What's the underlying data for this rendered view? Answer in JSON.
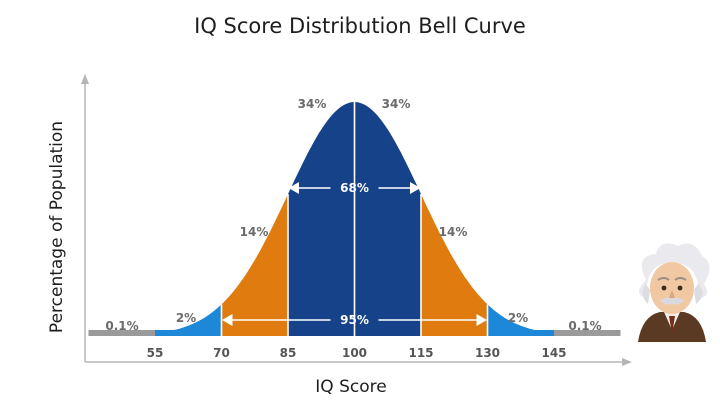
{
  "chart_data": {
    "type": "area",
    "title": "IQ Score Distribution Bell Curve",
    "xlabel": "IQ Score",
    "ylabel": "Percentage of Population",
    "x_ticks": [
      "55",
      "70",
      "85",
      "100",
      "115",
      "130",
      "145"
    ],
    "distribution": {
      "mean": 100,
      "sd": 15
    },
    "xlim": [
      40,
      160
    ],
    "segments": [
      {
        "from": 40,
        "to": 55,
        "label": "0.1%",
        "color": "#9a9a9a"
      },
      {
        "from": 55,
        "to": 70,
        "label": "2%",
        "color": "#1e88d8"
      },
      {
        "from": 70,
        "to": 85,
        "label": "14%",
        "color": "#e07b10"
      },
      {
        "from": 85,
        "to": 100,
        "label": "34%",
        "color": "#16428a"
      },
      {
        "from": 100,
        "to": 115,
        "label": "34%",
        "color": "#16428a"
      },
      {
        "from": 115,
        "to": 130,
        "label": "14%",
        "color": "#e07b10"
      },
      {
        "from": 130,
        "to": 145,
        "label": "2%",
        "color": "#1e88d8"
      },
      {
        "from": 145,
        "to": 160,
        "label": "0.1%",
        "color": "#9a9a9a"
      }
    ],
    "ranges": [
      {
        "from": 85,
        "to": 115,
        "label": "68%"
      },
      {
        "from": 70,
        "to": 130,
        "label": "95%"
      }
    ]
  },
  "mascot": {
    "icon": "einstein-avatar-icon"
  }
}
